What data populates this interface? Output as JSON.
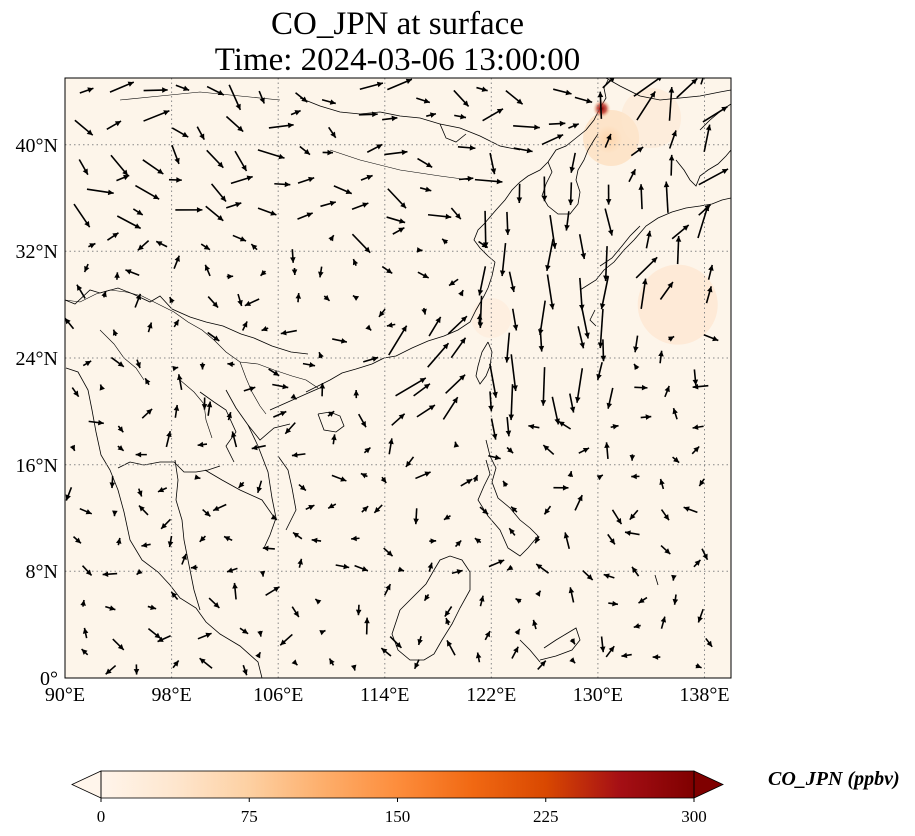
{
  "title": {
    "line1": "CO_JPN at surface",
    "line2": "Time: 2024-03-06 13:00:00"
  },
  "map": {
    "variable": "CO_JPN",
    "level": "surface",
    "lon_range": [
      90,
      140
    ],
    "lat_range": [
      0,
      45
    ],
    "lon_ticks": [
      "90°E",
      "98°E",
      "106°E",
      "114°E",
      "122°E",
      "130°E",
      "138°E"
    ],
    "lat_ticks": [
      "0°",
      "8°N",
      "16°N",
      "24°N",
      "32°N",
      "40°N"
    ],
    "gridlines": true,
    "background_color": "#fdf5ea",
    "coastline_color": "#000000",
    "vector_color": "#000000",
    "hotspots": [
      {
        "lon": 130.3,
        "lat": 42.7,
        "level": "high"
      },
      {
        "lon": 130.8,
        "lat": 40.4,
        "level": "low"
      }
    ]
  },
  "colorbar": {
    "label": "CO_JPN (ppbv)",
    "ticks": [
      "0",
      "75",
      "150",
      "225",
      "300"
    ],
    "min": 0,
    "max": 300,
    "extend": "both",
    "colors": [
      "#fff5eb",
      "#fee6ce",
      "#fdd0a2",
      "#fdae6b",
      "#fd8d3c",
      "#f16913",
      "#d94801",
      "#a50f15",
      "#7f0000"
    ]
  }
}
